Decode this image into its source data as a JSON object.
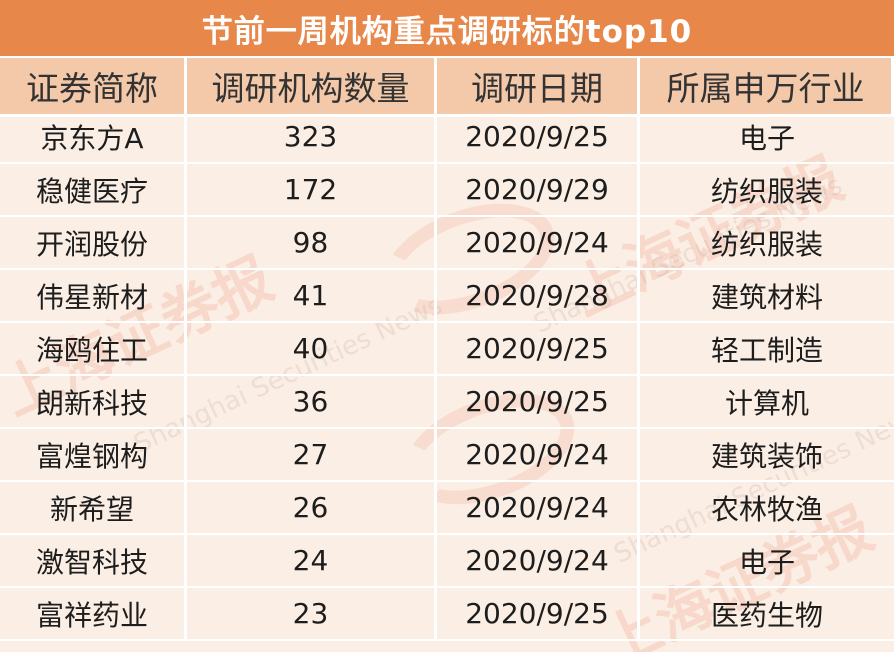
{
  "title": "节前一周机构重点调研标的top10",
  "headers": [
    "证券简称",
    "调研机构数量",
    "调研日期",
    "所属申万行业"
  ],
  "rows": [
    [
      "京东方A",
      "323",
      "2020/9/25",
      "电子"
    ],
    [
      "稳健医疗",
      "172",
      "2020/9/29",
      "纺织服装"
    ],
    [
      "开润股份",
      "98",
      "2020/9/24",
      "纺织服装"
    ],
    [
      "伟星新材",
      "41",
      "2020/9/28",
      "建筑材料"
    ],
    [
      "海鸥住工",
      "40",
      "2020/9/25",
      "轻工制造"
    ],
    [
      "朗新科技",
      "36",
      "2020/9/25",
      "计算机"
    ],
    [
      "富煌钢构",
      "27",
      "2020/9/24",
      "建筑装饰"
    ],
    [
      "新希望",
      "26",
      "2020/9/24",
      "农林牧渔"
    ],
    [
      "激智科技",
      "24",
      "2020/9/24",
      "电子"
    ],
    [
      "富祥药业",
      "23",
      "2020/9/25",
      "医药生物"
    ]
  ],
  "watermark": {
    "zh_1": "上海证券报",
    "zh_2": "上海证券报",
    "zh_3": "上海证券报",
    "en_1": "Shanghai Securities News",
    "en_2": "Shanghai Securities News",
    "en_3": "Shanghai Securities News"
  }
}
